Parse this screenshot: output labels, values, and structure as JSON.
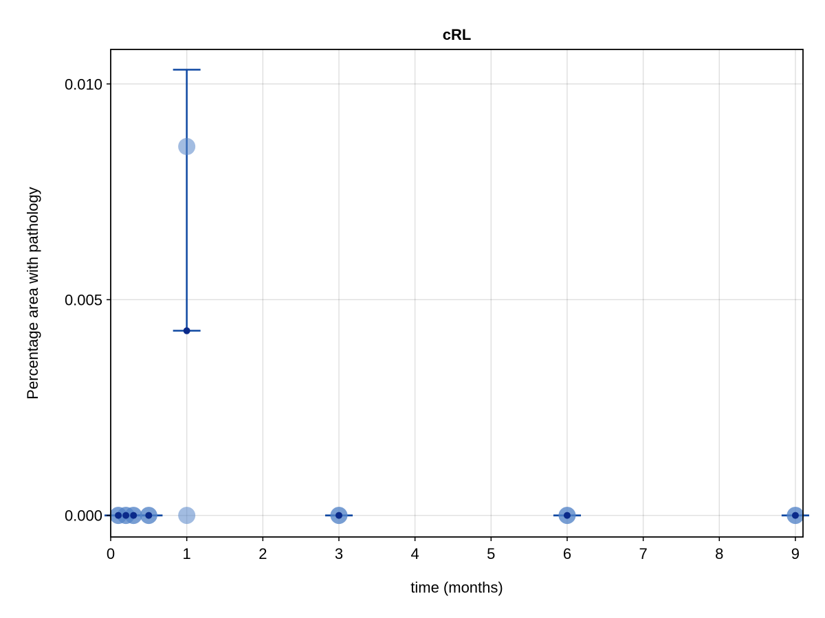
{
  "chart_data": {
    "type": "scatter",
    "title": "cRL",
    "xlabel": "time (months)",
    "ylabel": "Percentage area with pathology",
    "xlim": [
      0,
      9.1
    ],
    "ylim": [
      -0.0005,
      0.0108
    ],
    "xticks": [
      0,
      1,
      2,
      3,
      4,
      5,
      6,
      7,
      8,
      9
    ],
    "xtick_labels": [
      "0",
      "1",
      "2",
      "3",
      "4",
      "5",
      "6",
      "7",
      "8",
      "9"
    ],
    "yticks": [
      0.0,
      0.005,
      0.01
    ],
    "ytick_labels": [
      "0.000",
      "0.005",
      "0.010"
    ],
    "grid": true,
    "legend": "none",
    "colors": {
      "points": "#5585c8",
      "errorbar": "#0d47a1",
      "mean": "#0a2a8a"
    },
    "points": [
      {
        "x": 0.1,
        "y": 0.0
      },
      {
        "x": 0.1,
        "y": 0.0
      },
      {
        "x": 0.2,
        "y": 0.0
      },
      {
        "x": 0.2,
        "y": 0.0
      },
      {
        "x": 0.3,
        "y": 0.0
      },
      {
        "x": 0.3,
        "y": 0.0
      },
      {
        "x": 0.5,
        "y": 0.0
      },
      {
        "x": 0.5,
        "y": 0.0
      },
      {
        "x": 1.0,
        "y": 0.00855
      },
      {
        "x": 1.0,
        "y": 0.0
      },
      {
        "x": 3.0,
        "y": 0.0
      },
      {
        "x": 3.0,
        "y": 0.0
      },
      {
        "x": 6.0,
        "y": 0.0
      },
      {
        "x": 6.0,
        "y": 0.0
      },
      {
        "x": 9.0,
        "y": 0.0
      },
      {
        "x": 9.0,
        "y": 0.0
      }
    ],
    "summary": [
      {
        "x": 0.1,
        "mean": 0.0,
        "lower": 0.0,
        "upper": 0.0
      },
      {
        "x": 0.2,
        "mean": 0.0,
        "lower": 0.0,
        "upper": 0.0
      },
      {
        "x": 0.3,
        "mean": 0.0,
        "lower": 0.0,
        "upper": 0.0
      },
      {
        "x": 0.5,
        "mean": 0.0,
        "lower": 0.0,
        "upper": 0.0
      },
      {
        "x": 1.0,
        "mean": 0.00428,
        "lower": 0.00428,
        "upper": 0.01033
      },
      {
        "x": 3.0,
        "mean": 0.0,
        "lower": 0.0,
        "upper": 0.0
      },
      {
        "x": 6.0,
        "mean": 0.0,
        "lower": 0.0,
        "upper": 0.0
      },
      {
        "x": 9.0,
        "mean": 0.0,
        "lower": 0.0,
        "upper": 0.0
      }
    ]
  }
}
